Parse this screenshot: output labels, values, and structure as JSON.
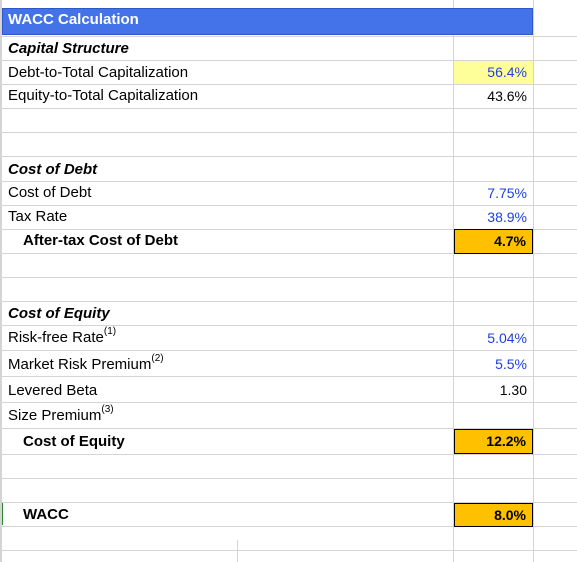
{
  "sheet": {
    "title": "WACC Calculation",
    "sections": {
      "capital_structure": {
        "heading": "Capital Structure",
        "debt_label": "Debt-to-Total Capitalization",
        "debt_value": "56.4%",
        "equity_label": "Equity-to-Total Capitalization",
        "equity_value": "43.6%"
      },
      "cost_of_debt": {
        "heading": "Cost of Debt",
        "cost_label": "Cost of Debt",
        "cost_value": "7.75%",
        "tax_label": "Tax Rate",
        "tax_value": "38.9%",
        "after_tax_label": "After-tax Cost of Debt",
        "after_tax_value": "4.7%"
      },
      "cost_of_equity": {
        "heading": "Cost of Equity",
        "rf_label": "Risk-free Rate",
        "rf_note": "(1)",
        "rf_value": "5.04%",
        "mrp_label": "Market Risk Premium",
        "mrp_note": "(2)",
        "mrp_value": "5.5%",
        "beta_label": "Levered Beta",
        "beta_value": "1.30",
        "size_label": "Size Premium",
        "size_note": "(3)",
        "size_value": "",
        "coe_label": "Cost of Equity",
        "coe_value": "12.2%"
      },
      "wacc": {
        "label": "WACC",
        "value": "8.0%"
      }
    },
    "colors": {
      "header_fill": "#4472e8",
      "input_text": "#1f3fe0",
      "highlight_fill": "#ffff99",
      "result_fill": "#ffc000"
    }
  }
}
